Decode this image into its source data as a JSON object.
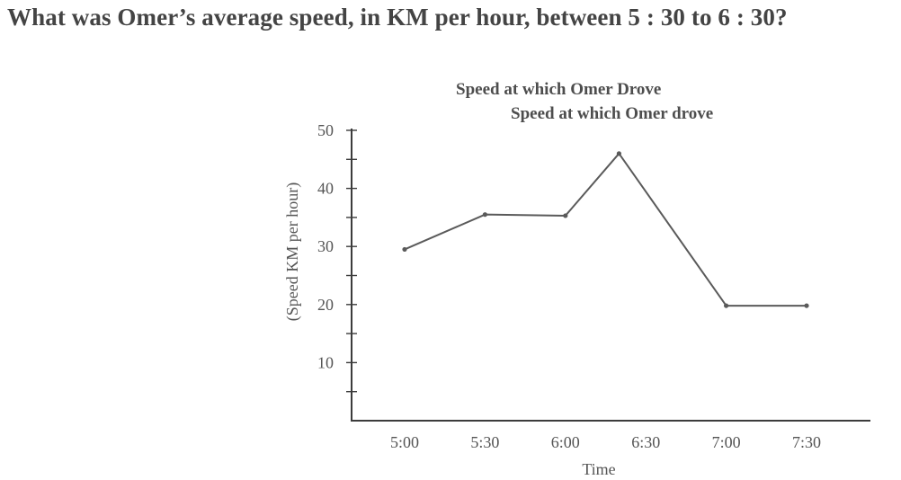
{
  "question": "What was Omer’s average speed, in KM per hour, between 5 : 30 to 6 : 30?",
  "chart_data": {
    "type": "line",
    "title": "Speed at which Omer Drove",
    "subtitle": "Speed at which Omer drove",
    "xlabel": "Time",
    "ylabel": "(Speed KM per hour)",
    "x_ticks": [
      "5:00",
      "5:30",
      "6:00",
      "6:30",
      "7:00",
      "7:30"
    ],
    "y_ticks": [
      10,
      20,
      30,
      40,
      50
    ],
    "ylim": [
      0,
      50
    ],
    "series": [
      {
        "points": [
          {
            "x": "5:00",
            "y": 29.5
          },
          {
            "x": "5:30",
            "y": 35.5
          },
          {
            "x": "6:00",
            "y": 35.3
          },
          {
            "x": "6:20",
            "y": 46
          },
          {
            "x": "7:00",
            "y": 19.8
          },
          {
            "x": "7:30",
            "y": 19.8
          }
        ]
      }
    ],
    "grid": false,
    "legend": "none",
    "colors": {
      "line": "#5a5a5a",
      "axis": "#3c3c3c",
      "text": "#555555"
    }
  }
}
